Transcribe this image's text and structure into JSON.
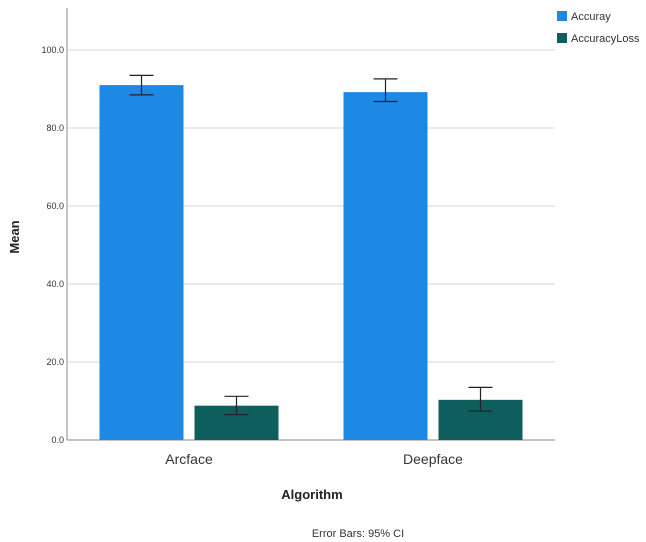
{
  "chart_data": {
    "type": "bar",
    "categories": [
      "Arcface",
      "Deepface"
    ],
    "series": [
      {
        "name": "Accuray",
        "values": [
          91.0,
          89.2
        ],
        "ci": [
          [
            88.5,
            93.5
          ],
          [
            86.8,
            92.6
          ]
        ],
        "color": "#1e88e5"
      },
      {
        "name": "AccuracyLoss",
        "values": [
          8.8,
          10.3
        ],
        "ci": [
          [
            6.5,
            11.2
          ],
          [
            7.4,
            13.5
          ]
        ],
        "color": "#0d5e5c"
      }
    ],
    "xlabel": "Algorithm",
    "ylabel": "Mean",
    "ylim": [
      0,
      100
    ],
    "yticks": [
      "0.0",
      "20.0",
      "40.0",
      "60.0",
      "80.0",
      "100.0"
    ],
    "grid": true,
    "legend": "top-right",
    "note": "Error Bars: 95% CI"
  }
}
